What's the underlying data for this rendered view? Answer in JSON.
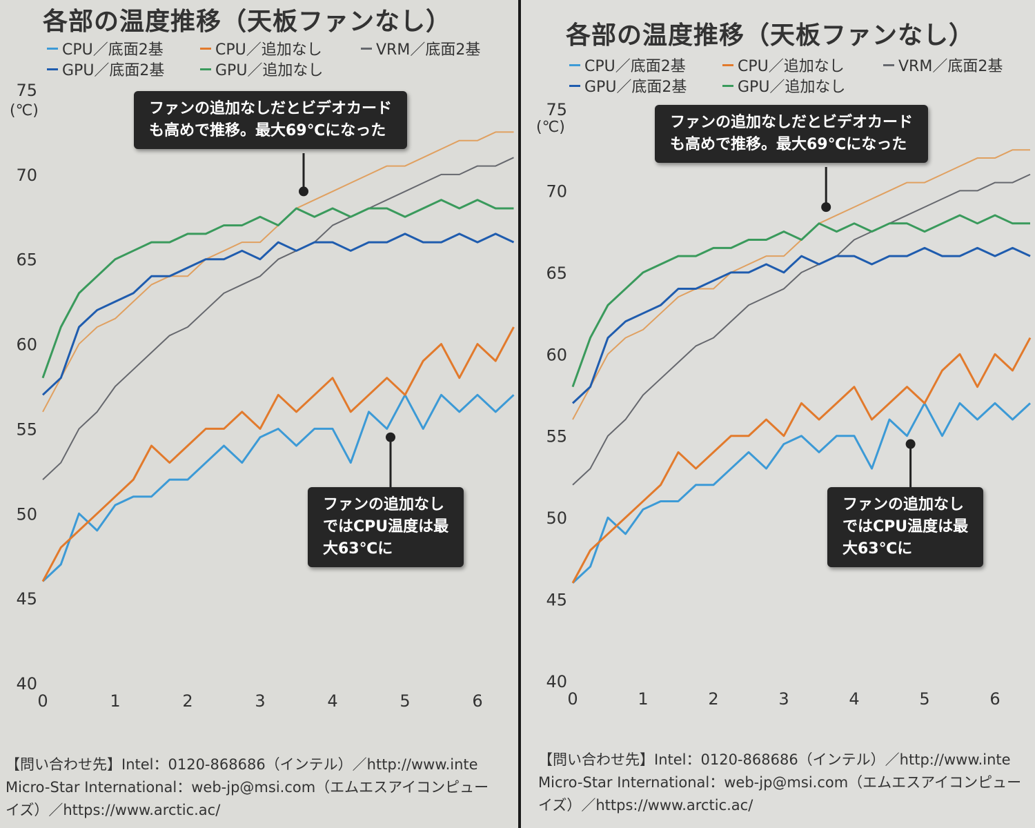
{
  "chart_data": {
    "type": "line",
    "title": "各部の温度推移（天板ファンなし）",
    "ylabel": "(℃)",
    "xlabel": "",
    "xlim": [
      0,
      6.5
    ],
    "ylim": [
      40,
      75
    ],
    "x_ticks": [
      "0",
      "1",
      "2",
      "3",
      "4",
      "5",
      "6"
    ],
    "y_ticks": [
      "40",
      "45",
      "50",
      "55",
      "60",
      "65",
      "70",
      "75"
    ],
    "grid": false,
    "legend_position": "top",
    "x": [
      0,
      0.25,
      0.5,
      0.75,
      1,
      1.25,
      1.5,
      1.75,
      2,
      2.25,
      2.5,
      2.75,
      3,
      3.25,
      3.5,
      3.75,
      4,
      4.25,
      4.5,
      4.75,
      5,
      5.25,
      5.5,
      5.75,
      6,
      6.25,
      6.5
    ],
    "series": [
      {
        "name": "CPU／底面2基",
        "color": "#3c9ad6",
        "width": 3,
        "values": [
          46,
          47,
          50,
          49,
          50.5,
          51,
          51,
          52,
          52,
          53,
          54,
          53,
          54.5,
          55,
          54,
          55,
          55,
          53,
          56,
          55,
          57,
          55,
          57,
          56,
          57,
          56,
          57
        ]
      },
      {
        "name": "CPU／追加なし",
        "color": "#e27a2c",
        "width": 3,
        "values": [
          46,
          48,
          49,
          50,
          51,
          52,
          54,
          53,
          54,
          55,
          55,
          56,
          55,
          57,
          56,
          57,
          58,
          56,
          57,
          58,
          57,
          59,
          60,
          58,
          60,
          59,
          61
        ]
      },
      {
        "name": "VRM／底面2基",
        "color": "#66686e",
        "width": 2,
        "values": [
          52,
          53,
          55,
          56,
          57.5,
          58.5,
          59.5,
          60.5,
          61,
          62,
          63,
          63.5,
          64,
          65,
          65.5,
          66,
          67,
          67.5,
          68,
          68.5,
          69,
          69.5,
          70,
          70,
          70.5,
          70.5,
          71
        ]
      },
      {
        "color": "#e0a060",
        "width": 2,
        "values": [
          56,
          58,
          60,
          61,
          61.5,
          62.5,
          63.5,
          64,
          64,
          65,
          65.5,
          66,
          66,
          67,
          68,
          68.5,
          69,
          69.5,
          70,
          70.5,
          70.5,
          71,
          71.5,
          72,
          72,
          72.5,
          72.5
        ]
      },
      {
        "name": "GPU／底面2基",
        "color": "#1f5cae",
        "width": 3,
        "values": [
          57,
          58,
          61,
          62,
          62.5,
          63,
          64,
          64,
          64.5,
          65,
          65,
          65.5,
          65,
          66,
          65.5,
          66,
          66,
          65.5,
          66,
          66,
          66.5,
          66,
          66,
          66.5,
          66,
          66.5,
          66
        ]
      },
      {
        "name": "GPU／追加なし",
        "color": "#3a9a5c",
        "width": 3,
        "values": [
          58,
          61,
          63,
          64,
          65,
          65.5,
          66,
          66,
          66.5,
          66.5,
          67,
          67,
          67.5,
          67,
          68,
          67.5,
          68,
          67.5,
          68,
          68,
          67.5,
          68,
          68.5,
          68,
          68.5,
          68,
          68
        ]
      }
    ],
    "annotations": [
      {
        "text": "ファンの追加なしだとビデオカード\nも高めで推移。最大69℃になった",
        "x": 3.6,
        "y": 69
      },
      {
        "text": "ファンの追加なし\nではCPU温度は最\n大63℃に",
        "x": 4.8,
        "y": 54.5
      }
    ]
  },
  "footer": {
    "line1": "【問い合わせ先】Intel：0120-868686（インテル）／http://www.inte",
    "line2": "Micro-Star International：web-jp@msi.com（エムエスアイコンピュー",
    "line3": "イズ）／https://www.arctic.ac/"
  }
}
